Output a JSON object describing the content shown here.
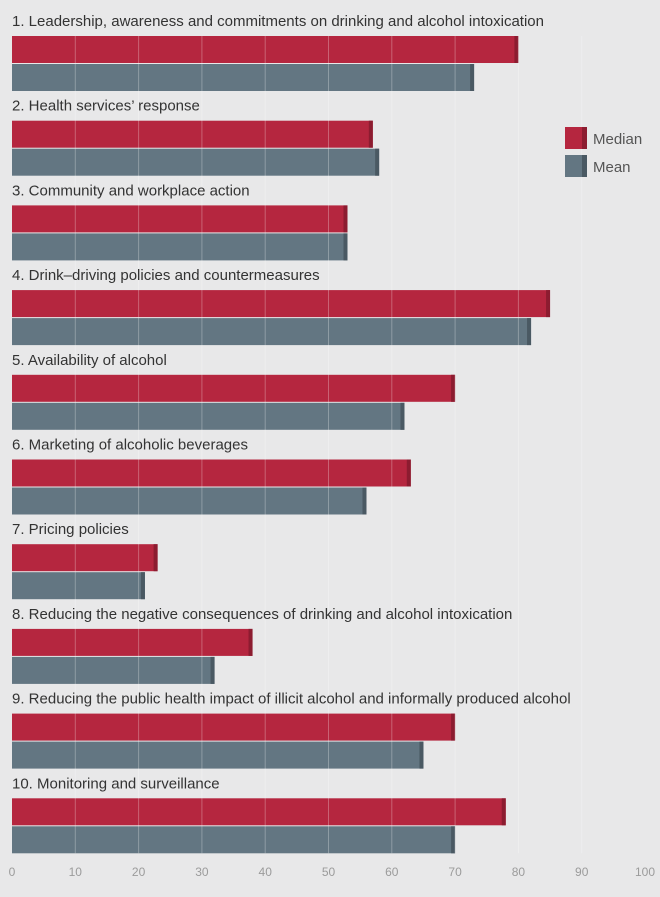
{
  "chart_data": {
    "type": "bar",
    "orientation": "horizontal",
    "categories": [
      "1. Leadership, awareness and commitments on drinking and alcohol intoxication",
      "2. Health services’ response",
      "3. Community and workplace action",
      "4. Drink–driving policies and countermeasures",
      "5. Availability of alcohol",
      "6. Marketing of alcoholic beverages",
      "7. Pricing policies",
      "8. Reducing the negative consequences of drinking and alcohol intoxication",
      "9. Reducing the public health impact of illicit alcohol and informally produced alcohol",
      "10. Monitoring and surveillance"
    ],
    "series": [
      {
        "name": "Median",
        "color": "#b5263f",
        "values": [
          80,
          57,
          53,
          85,
          70,
          63,
          23,
          38,
          70,
          78
        ]
      },
      {
        "name": "Mean",
        "color": "#637682",
        "values": [
          73,
          58,
          53,
          82,
          62,
          56,
          21,
          32,
          65,
          70
        ]
      }
    ],
    "xlim": [
      0,
      100
    ],
    "xticks": [
      "0",
      "10",
      "20",
      "30",
      "40",
      "50",
      "60",
      "70",
      "80",
      "90",
      "100"
    ],
    "grid": true,
    "legend_position": "top-right"
  }
}
